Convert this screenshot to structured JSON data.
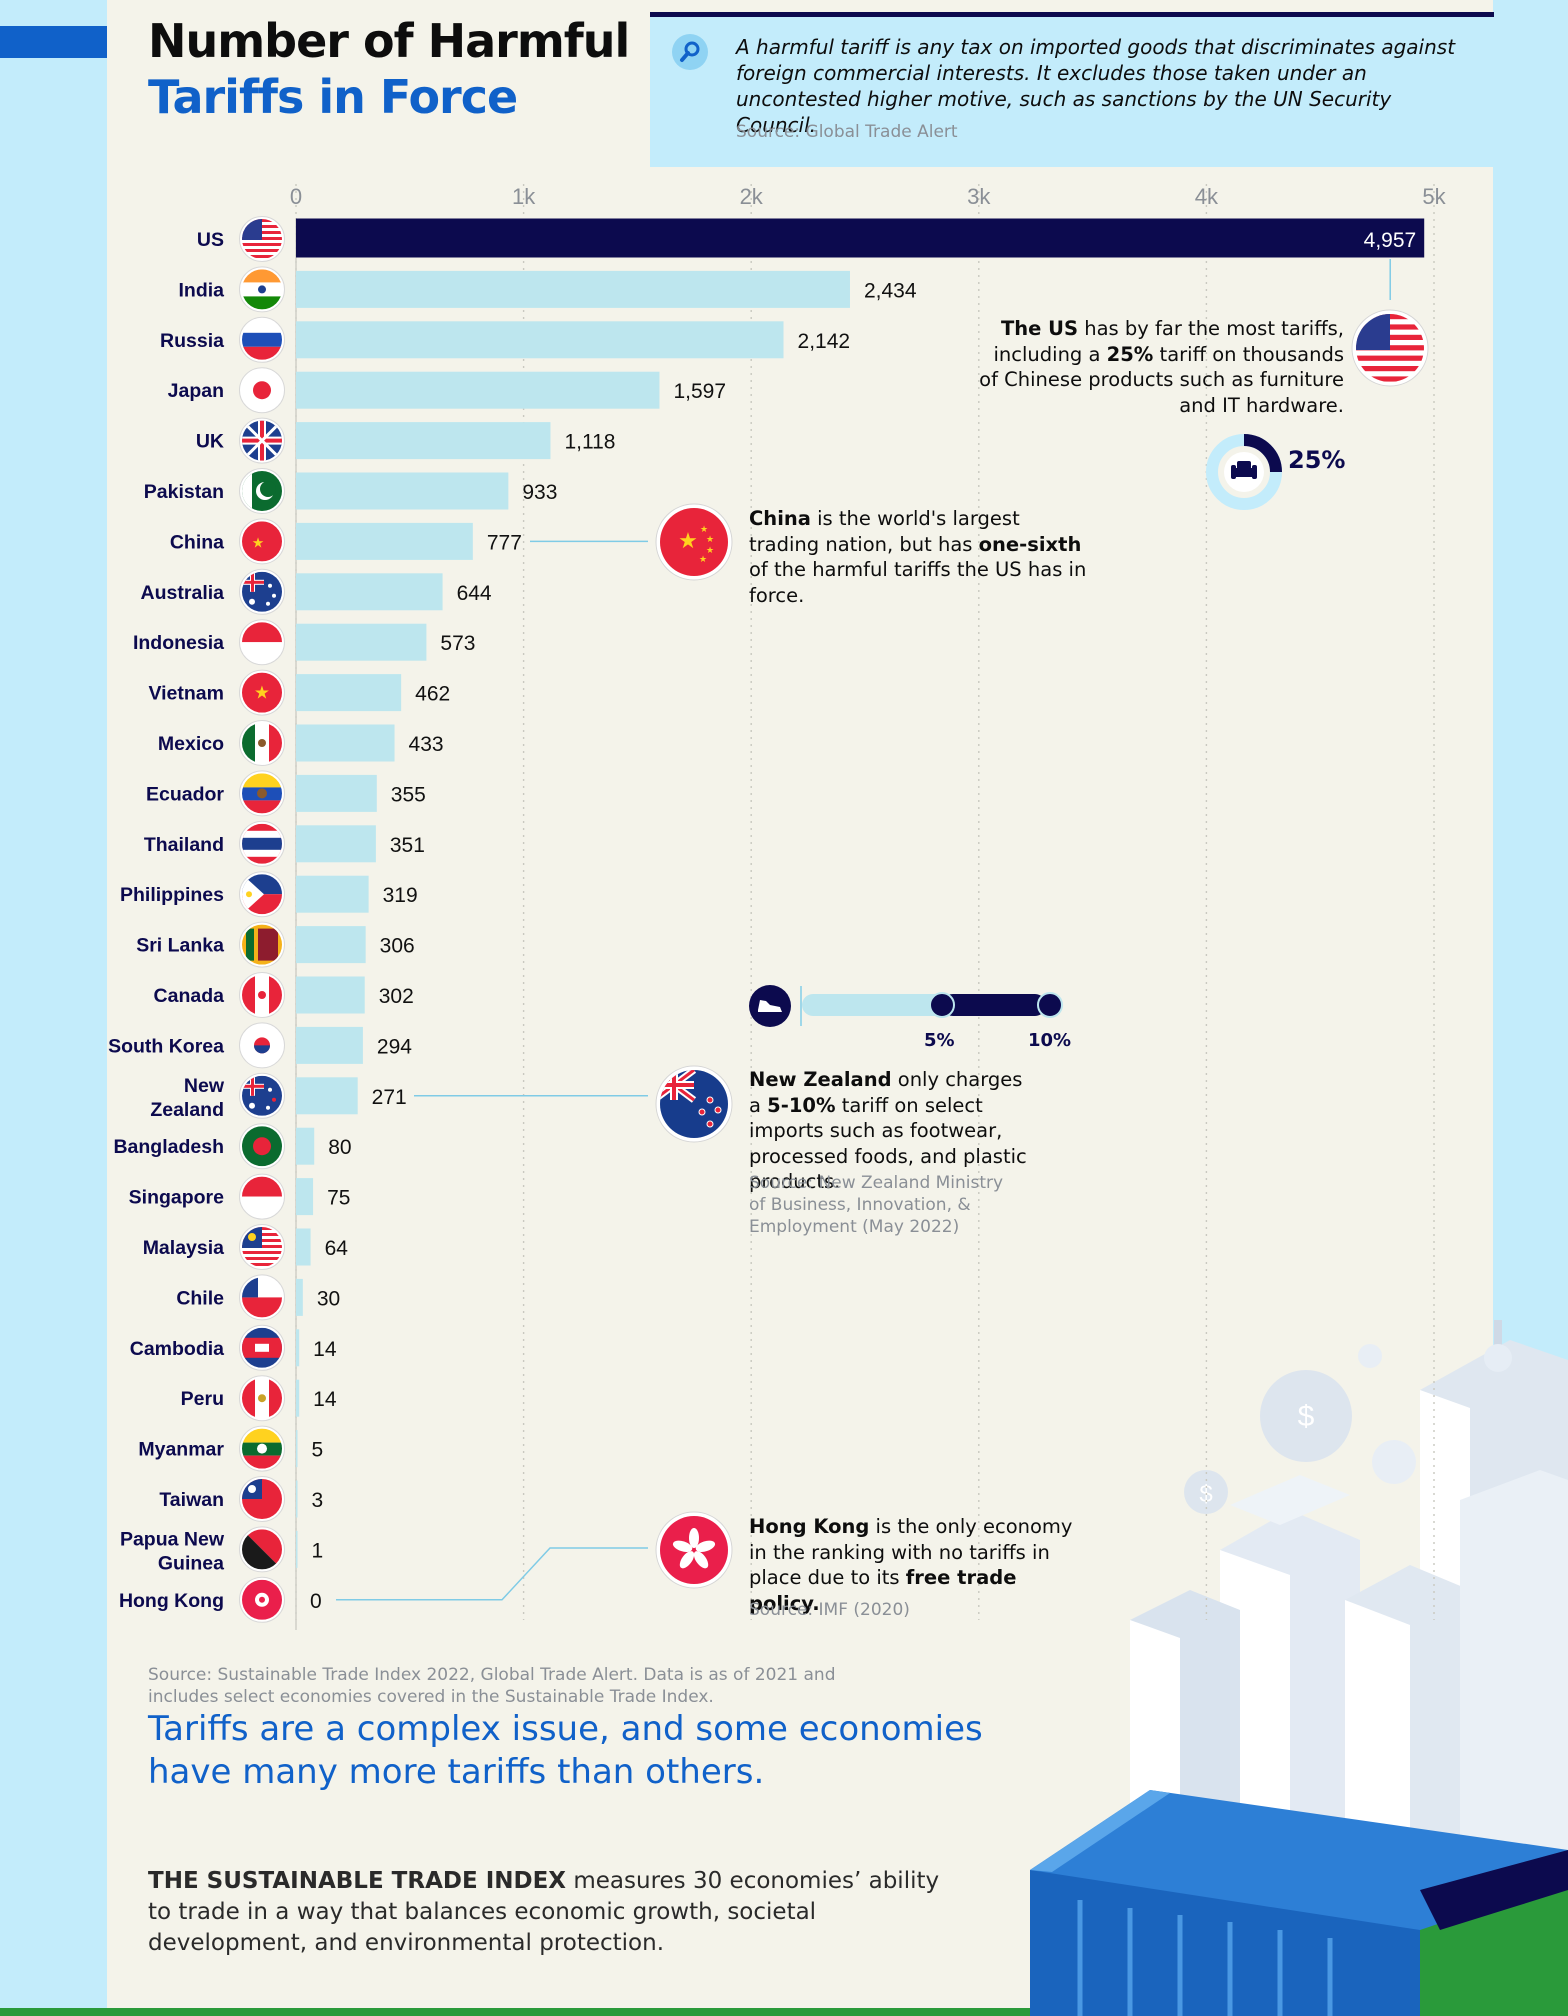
{
  "header": {
    "title_line1": "Number of Harmful",
    "title_line2": "Tariffs in Force",
    "definition": "A harmful tariff is any tax on imported goods that discriminates against foreign commercial interests. It excludes those taken under an uncontested higher motive, such as sanctions by the UN Security Council.",
    "definition_source": "Source: Global Trade Alert",
    "search_icon": "magnifier-icon"
  },
  "colors": {
    "page_bg": "#c3ecfb",
    "panel_bg": "#f4f3ea",
    "bar": "#bde6ee",
    "bar_highlight": "#0c0a4e",
    "title_blue": "#1061c9",
    "label_navy": "#0c0a4e"
  },
  "chart_data": {
    "type": "bar",
    "orientation": "horizontal",
    "xlim": [
      0,
      5000
    ],
    "tick_labels": [
      "0",
      "1k",
      "2k",
      "3k",
      "4k",
      "5k"
    ],
    "tick_values": [
      0,
      1000,
      2000,
      3000,
      4000,
      5000
    ],
    "grid": true,
    "categories": [
      "US",
      "India",
      "Russia",
      "Japan",
      "UK",
      "Pakistan",
      "China",
      "Australia",
      "Indonesia",
      "Vietnam",
      "Mexico",
      "Ecuador",
      "Thailand",
      "Philippines",
      "Sri Lanka",
      "Canada",
      "South Korea",
      "New Zealand",
      "Bangladesh",
      "Singapore",
      "Malaysia",
      "Chile",
      "Cambodia",
      "Peru",
      "Myanmar",
      "Taiwan",
      "Papua New Guinea",
      "Hong Kong"
    ],
    "category_label_lines": [
      [
        "US"
      ],
      [
        "India"
      ],
      [
        "Russia"
      ],
      [
        "Japan"
      ],
      [
        "UK"
      ],
      [
        "Pakistan"
      ],
      [
        "China"
      ],
      [
        "Australia"
      ],
      [
        "Indonesia"
      ],
      [
        "Vietnam"
      ],
      [
        "Mexico"
      ],
      [
        "Ecuador"
      ],
      [
        "Thailand"
      ],
      [
        "Philippines"
      ],
      [
        "Sri Lanka"
      ],
      [
        "Canada"
      ],
      [
        "South Korea"
      ],
      [
        "New",
        "Zealand"
      ],
      [
        "Bangladesh"
      ],
      [
        "Singapore"
      ],
      [
        "Malaysia"
      ],
      [
        "Chile"
      ],
      [
        "Cambodia"
      ],
      [
        "Peru"
      ],
      [
        "Myanmar"
      ],
      [
        "Taiwan"
      ],
      [
        "Papua New",
        "Guinea"
      ],
      [
        "Hong Kong"
      ]
    ],
    "values": [
      4957,
      2434,
      2142,
      1597,
      1118,
      933,
      777,
      644,
      573,
      462,
      433,
      355,
      351,
      319,
      306,
      302,
      294,
      271,
      80,
      75,
      64,
      30,
      14,
      14,
      5,
      3,
      1,
      0
    ],
    "value_labels": [
      "4,957",
      "2,434",
      "2,142",
      "1,597",
      "1,118",
      "933",
      "777",
      "644",
      "573",
      "462",
      "433",
      "355",
      "351",
      "319",
      "306",
      "302",
      "294",
      "271",
      "80",
      "75",
      "64",
      "30",
      "14",
      "14",
      "5",
      "3",
      "1",
      "0"
    ],
    "flags": [
      "us",
      "india",
      "russia",
      "japan",
      "uk",
      "pakistan",
      "china",
      "australia",
      "indonesia",
      "vietnam",
      "mexico",
      "ecuador",
      "thailand",
      "philippines",
      "sri-lanka",
      "canada",
      "south-korea",
      "new-zealand",
      "bangladesh",
      "singapore",
      "malaysia",
      "chile",
      "cambodia",
      "peru",
      "myanmar",
      "taiwan",
      "papua-new-guinea",
      "hong-kong"
    ],
    "highlighted": "US"
  },
  "annotations": {
    "us": {
      "pre": "The US",
      "mid1": " has by far the most tariffs, including a ",
      "bold2": "25%",
      "post": " tariff on thousands of Chinese products such as furniture and IT hardware.",
      "gauge_label": "25%",
      "gauge_value": 0.25,
      "gauge_icon": "armchair-icon"
    },
    "china": {
      "bold1": "China",
      "mid": " is the world's largest trading nation, but has ",
      "bold2": "one-sixth",
      "post": " of the harmful tariffs the US has in force."
    },
    "new_zealand": {
      "bold1": "New Zealand",
      "mid": " only charges a ",
      "bold2": "5-10%",
      "post": " tariff on select imports such as footwear, processed foods, and plastic products.",
      "source": "Source: New Zealand Ministry of Business, Innovation, & Employment (May 2022)",
      "range_low_label": "5%",
      "range_high_label": "10%",
      "range_icon": "shoe-icon"
    },
    "hong_kong": {
      "bold1": "Hong Kong",
      "mid": " is the only economy in the ranking with no tariffs in place due to its ",
      "bold2": "free trade policy.",
      "source": "Source: IMF (2020)"
    }
  },
  "footer": {
    "source": "Source: Sustainable Trade Index 2022, Global Trade Alert. Data is as of 2021 and includes select economies covered in the Sustainable Trade Index.",
    "tagline": "Tariffs are a complex issue, and some economies have many more tariffs than others.",
    "sti_bold": "THE SUSTAINABLE TRADE INDEX",
    "sti_rest": " measures 30 economies’ ability to trade in a way that balances economic growth, societal development, and environmental protection."
  }
}
